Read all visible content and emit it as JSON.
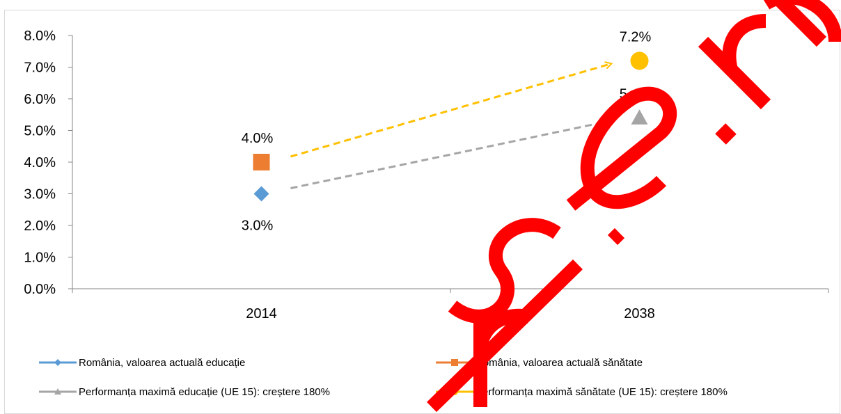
{
  "chart_data": {
    "type": "scatter",
    "categories": [
      "2014",
      "2038"
    ],
    "ylim": [
      0,
      8
    ],
    "y_ticks": [
      "0.0%",
      "1.0%",
      "2.0%",
      "3.0%",
      "4.0%",
      "5.0%",
      "6.0%",
      "7.0%",
      "8.0%"
    ],
    "grid": false,
    "legend_position": "bottom",
    "series": [
      {
        "name": "România, valoarea actuală educație",
        "category": "2014",
        "value": 3.0,
        "label": "3.0%",
        "marker": "diamond",
        "color": "#5b9bd5",
        "label_position": "below"
      },
      {
        "name": "România, valoarea actuală sănătate",
        "category": "2014",
        "value": 4.0,
        "label": "4.0%",
        "marker": "square",
        "color": "#ed7d31",
        "label_position": "above"
      },
      {
        "name": "Performanța maximă educație (UE 15): creștere 180%",
        "category": "2038",
        "value": 5.4,
        "label": "5.4%",
        "marker": "triangle",
        "color": "#a5a5a5",
        "label_position": "above"
      },
      {
        "name": "Performanța maximă sănătate (UE 15): creștere 180%",
        "category": "2038",
        "value": 7.2,
        "label": "7.2%",
        "marker": "circle",
        "color": "#ffc000",
        "label_position": "above"
      }
    ],
    "arrows": [
      {
        "from": {
          "category": "2014",
          "value": 3.0
        },
        "to": {
          "category": "2038",
          "value": 5.4
        },
        "color": "#a5a5a5",
        "style": "dashed"
      },
      {
        "from": {
          "category": "2014",
          "value": 4.0
        },
        "to": {
          "category": "2038",
          "value": 7.2
        },
        "color": "#ffc000",
        "style": "dashed"
      }
    ]
  },
  "watermark": {
    "text": "rise.ro",
    "color": "#ff0000"
  }
}
